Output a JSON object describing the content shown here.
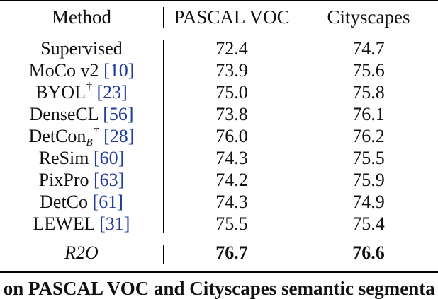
{
  "headers": [
    "Method",
    "PASCAL VOC",
    "Cityscapes"
  ],
  "rows": [
    {
      "name": "Supervised",
      "ref": "",
      "sup": "",
      "sub": "",
      "voc": "72.4",
      "city": "74.7"
    },
    {
      "name": "MoCo v2",
      "ref": "[10]",
      "sup": "",
      "sub": "",
      "voc": "73.9",
      "city": "75.6"
    },
    {
      "name": "BYOL",
      "ref": "[23]",
      "sup": "†",
      "sub": "",
      "voc": "75.0",
      "city": "75.8"
    },
    {
      "name": "DenseCL",
      "ref": "[56]",
      "sup": "",
      "sub": "",
      "voc": "73.8",
      "city": "76.1"
    },
    {
      "name": "DetCon",
      "ref": "[28]",
      "sup": "†",
      "sub": "B",
      "voc": "76.0",
      "city": "76.2"
    },
    {
      "name": "ReSim",
      "ref": "[60]",
      "sup": "",
      "sub": "",
      "voc": "74.3",
      "city": "75.5"
    },
    {
      "name": "PixPro",
      "ref": "[63]",
      "sup": "",
      "sub": "",
      "voc": "74.2",
      "city": "75.9"
    },
    {
      "name": "DetCo",
      "ref": "[61]",
      "sup": "",
      "sub": "",
      "voc": "74.3",
      "city": "74.9"
    },
    {
      "name": "LEWEL",
      "ref": "[31]",
      "sup": "",
      "sub": "",
      "voc": "75.5",
      "city": "75.4"
    }
  ],
  "ours": {
    "name": "R2O",
    "voc": "76.7",
    "city": "76.6"
  },
  "caption": "e on PASCAL VOC and Cityscapes semantic segmenta"
}
